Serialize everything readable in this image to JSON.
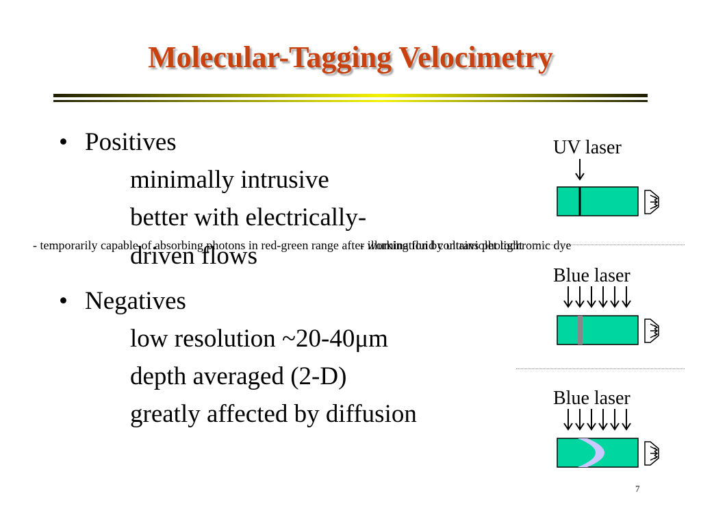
{
  "slide": {
    "title": "Molecular-Tagging Velocimetry",
    "page_number": "7",
    "accent_color": "#c8410f",
    "tube_color": "#00d7a0",
    "positives": {
      "bullet": "•",
      "heading": "Positives",
      "items": [
        "minimally intrusive",
        "better with electrically-",
        "driven flows"
      ]
    },
    "negatives": {
      "bullet": "•",
      "heading": "Negatives",
      "items": [
        "low resolution  ~20-40μm",
        "depth averaged (2-D)",
        "greatly affected by diffusion"
      ]
    },
    "captions": {
      "left": "- temporarily capable of absorbing photons in red-green range after illumination by ultraviolet light",
      "right": "- working fluid contains photochromic dye"
    },
    "diagram": {
      "label_1": "UV laser",
      "label_2": "Blue laser",
      "label_3": "Blue laser"
    }
  }
}
